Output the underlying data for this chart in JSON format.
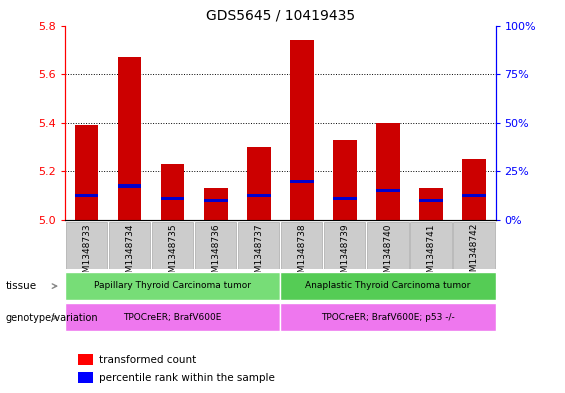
{
  "title": "GDS5645 / 10419435",
  "samples": [
    "GSM1348733",
    "GSM1348734",
    "GSM1348735",
    "GSM1348736",
    "GSM1348737",
    "GSM1348738",
    "GSM1348739",
    "GSM1348740",
    "GSM1348741",
    "GSM1348742"
  ],
  "transformed_count": [
    5.39,
    5.67,
    5.23,
    5.13,
    5.3,
    5.74,
    5.33,
    5.4,
    5.13,
    5.25
  ],
  "percentile_rank": [
    5.1,
    5.14,
    5.09,
    5.08,
    5.1,
    5.16,
    5.09,
    5.12,
    5.08,
    5.1
  ],
  "bar_bottom": 5.0,
  "ylim": [
    5.0,
    5.8
  ],
  "yticks_left": [
    5.0,
    5.2,
    5.4,
    5.6,
    5.8
  ],
  "yticks_right": [
    0,
    25,
    50,
    75,
    100
  ],
  "left_axis_color": "red",
  "right_axis_color": "blue",
  "bar_color": "#cc0000",
  "percentile_color": "#0000cc",
  "tissue_groups": [
    {
      "label": "Papillary Thyroid Carcinoma tumor",
      "start": 0,
      "end": 5,
      "color": "#77dd77"
    },
    {
      "label": "Anaplastic Thyroid Carcinoma tumor",
      "start": 5,
      "end": 10,
      "color": "#55cc55"
    }
  ],
  "genotype_groups": [
    {
      "label": "TPOCreER; BrafV600E",
      "start": 0,
      "end": 5,
      "color": "#ee77ee"
    },
    {
      "label": "TPOCreER; BrafV600E; p53 -/-",
      "start": 5,
      "end": 10,
      "color": "#ee77ee"
    }
  ],
  "tissue_label": "tissue",
  "genotype_label": "genotype/variation",
  "legend_red": "transformed count",
  "legend_blue": "percentile rank within the sample",
  "bar_width": 0.55,
  "xlabel_bg_color": "#cccccc",
  "xlabel_border_color": "#aaaaaa"
}
